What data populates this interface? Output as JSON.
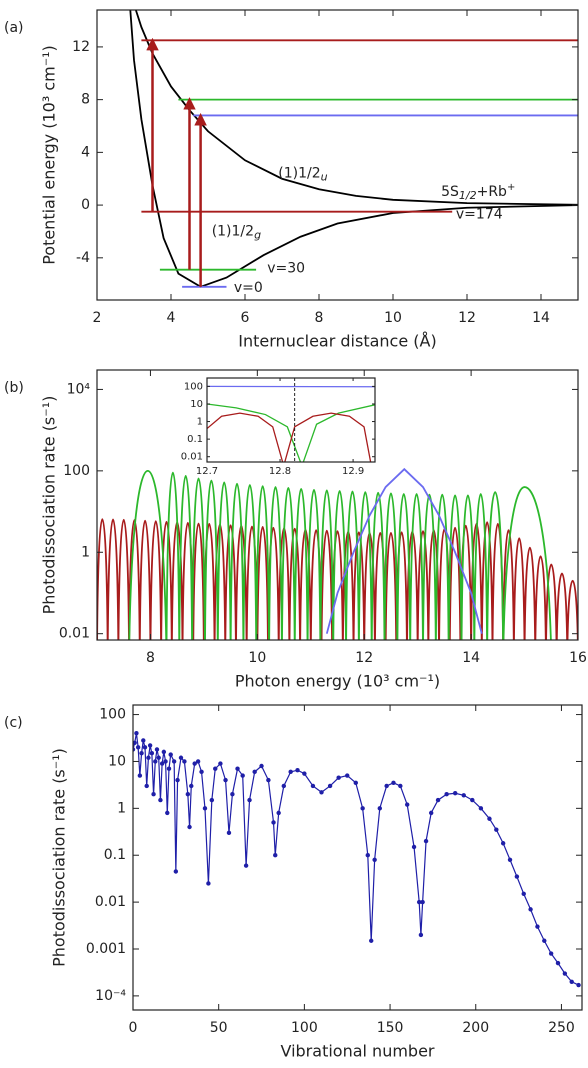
{
  "chart_data": [
    {
      "type": "line",
      "label": "(a)",
      "xlabel": "Internuclear distance (Å)",
      "ylabel": "Potential energy (10³ cm⁻¹)",
      "xlim": [
        2,
        15
      ],
      "ylim": [
        -7.2,
        14.8
      ],
      "xticks": [
        2,
        4,
        6,
        8,
        10,
        12,
        14
      ],
      "yticks": [
        -4,
        0,
        4,
        8,
        12
      ],
      "series": [
        {
          "color": "#000000",
          "x": [
            2.9,
            3,
            3.2,
            3.5,
            3.8,
            4.2,
            4.8,
            5.5,
            6.5,
            7.5,
            8.5,
            10,
            12,
            15
          ],
          "values": [
            14.8,
            11,
            6.5,
            1.5,
            -2.5,
            -5.2,
            -6.2,
            -5.5,
            -3.8,
            -2.4,
            -1.4,
            -0.6,
            -0.2,
            0
          ]
        },
        {
          "color": "#000000",
          "x": [
            3.05,
            3.2,
            3.5,
            4,
            4.5,
            5,
            6,
            7,
            8,
            9,
            10,
            12,
            15
          ],
          "values": [
            14.8,
            13.5,
            11.5,
            9,
            7.2,
            5.6,
            3.4,
            2,
            1.2,
            0.7,
            0.4,
            0.15,
            0.02
          ]
        },
        {
          "color": "#a81c1c",
          "x": [
            3.2,
            15
          ],
          "values": [
            12.5,
            12.5
          ]
        },
        {
          "color": "#2cb82c",
          "x": [
            4.2,
            15
          ],
          "values": [
            8,
            8
          ]
        },
        {
          "color": "#6b6bf0",
          "x": [
            4.6,
            15
          ],
          "values": [
            6.8,
            6.8
          ]
        },
        {
          "color": "#a81c1c",
          "x": [
            3.2,
            11.6
          ],
          "values": [
            -0.5,
            -0.5
          ]
        },
        {
          "color": "#2cb82c",
          "x": [
            3.7,
            6.3
          ],
          "values": [
            -4.9,
            -4.9
          ]
        },
        {
          "color": "#6b6bf0",
          "x": [
            4.3,
            5.5
          ],
          "values": [
            -6.2,
            -6.2
          ]
        },
        {
          "color": "#a81c1c",
          "arrow": true,
          "x": [
            3.5,
            3.5
          ],
          "values": [
            -0.5,
            12.5
          ]
        },
        {
          "color": "#a81c1c",
          "arrow": true,
          "x": [
            4.5,
            4.5
          ],
          "values": [
            -4.9,
            8
          ]
        },
        {
          "color": "#a81c1c",
          "arrow": true,
          "x": [
            4.8,
            4.8
          ],
          "values": [
            -6.2,
            6.8
          ]
        }
      ],
      "annotations": [
        {
          "text": "(1)1/2",
          "sub": "u"
        },
        {
          "text": "(1)1/2",
          "sub": "g"
        },
        {
          "text": "5S",
          "sub": "1/2",
          "tail": "+Rb",
          "sup": "+"
        },
        {
          "text": "v=174"
        },
        {
          "text": "v=30"
        },
        {
          "text": "v=0"
        }
      ]
    },
    {
      "type": "line",
      "label": "(b)",
      "log": true,
      "xlabel": "Photon energy (10³ cm⁻¹)",
      "ylabel": "Photodissociation rate (s⁻¹)",
      "xlim": [
        7,
        16
      ],
      "ylim": [
        0.007,
        30000
      ],
      "xticks": [
        8,
        10,
        12,
        14,
        16
      ],
      "yticks": [
        0.01,
        1,
        100,
        {
          "value": 10000,
          "label": "10⁴"
        }
      ],
      "series": [
        {
          "color": "#a81c1c",
          "arch": true,
          "x": [
            7,
            7.1,
            7.2,
            7.3,
            7.4,
            7.5,
            7.6,
            7.7,
            7.8,
            7.9,
            8,
            8.1,
            8.2,
            8.3,
            8.4,
            8.5,
            8.6,
            8.7,
            8.8,
            8.9,
            9,
            9.1,
            9.2,
            9.3,
            9.4,
            9.5,
            9.6,
            9.7,
            9.8,
            9.9,
            10,
            10.1,
            10.2,
            10.3,
            10.4,
            10.5,
            10.6,
            10.7,
            10.8,
            10.9,
            11,
            11.1,
            11.2,
            11.3,
            11.4,
            11.5,
            11.6,
            11.7,
            11.8,
            11.9,
            12,
            12.1,
            12.2,
            12.3,
            12.4,
            12.5,
            12.6,
            12.7,
            12.8,
            12.9,
            13,
            13.1,
            13.2,
            13.3,
            13.4,
            13.5,
            13.6,
            13.7,
            13.8,
            13.9,
            14,
            14.1,
            14.2,
            14.3,
            14.4,
            14.5,
            14.6,
            14.7,
            14.8,
            14.9,
            15,
            15.1,
            15.2,
            15.3,
            15.4,
            15.5,
            15.6,
            15.7,
            15.8,
            15.9,
            16
          ],
          "values": [
            0.003,
            6.5,
            0.003,
            6.4,
            0.003,
            6.3,
            0.003,
            6.2,
            0.003,
            6.0,
            0.003,
            5.8,
            0.003,
            5.6,
            0.003,
            5.5,
            0.003,
            5.3,
            0.003,
            5.1,
            0.003,
            5.0,
            0.003,
            4.8,
            0.003,
            4.6,
            0.003,
            4.5,
            0.003,
            4.3,
            0.003,
            4.2,
            0.003,
            4.0,
            0.003,
            3.9,
            0.003,
            3.8,
            0.003,
            3.6,
            0.003,
            3.5,
            0.003,
            3.4,
            0.003,
            3.3,
            0.003,
            3.2,
            0.003,
            3.1,
            0.003,
            3.0,
            0.003,
            3.0,
            0.003,
            3.0,
            0.003,
            3.1,
            0.003,
            3.2,
            0.003,
            3.3,
            0.003,
            3.5,
            0.003,
            3.7,
            0.003,
            4.0,
            0.003,
            4.5,
            0.003,
            5.0,
            0.003,
            5.5,
            0.003,
            5.0,
            0.003,
            3.5,
            0.003,
            2.2,
            0.003,
            1.3,
            0.003,
            0.8,
            0.003,
            0.5,
            0.003,
            0.3,
            0.003,
            0.2,
            0.003
          ]
        },
        {
          "color": "#2cb82c",
          "arch": true,
          "x": [
            7.6,
            7.95,
            8.3,
            8.42,
            8.54,
            8.66,
            8.78,
            8.9,
            9.02,
            9.14,
            9.26,
            9.38,
            9.5,
            9.62,
            9.74,
            9.86,
            9.98,
            10.1,
            10.22,
            10.34,
            10.46,
            10.58,
            10.7,
            10.82,
            10.94,
            11.06,
            11.18,
            11.3,
            11.42,
            11.54,
            11.66,
            11.78,
            11.9,
            12.02,
            12.14,
            12.26,
            12.38,
            12.5,
            12.62,
            12.74,
            12.86,
            12.98,
            13.1,
            13.22,
            13.34,
            13.46,
            13.58,
            13.7,
            13.82,
            13.94,
            14.06,
            14.18,
            14.3,
            14.45,
            14.6,
            15.0,
            15.5
          ],
          "values": [
            0.003,
            100,
            0.003,
            90,
            0.003,
            75,
            0.003,
            65,
            0.003,
            58,
            0.003,
            52,
            0.003,
            48,
            0.003,
            45,
            0.003,
            42,
            0.003,
            40,
            0.003,
            38,
            0.003,
            36,
            0.003,
            34,
            0.003,
            33,
            0.003,
            32,
            0.003,
            31,
            0.003,
            30,
            0.003,
            29,
            0.003,
            28,
            0.003,
            27,
            0.003,
            27,
            0.003,
            26,
            0.003,
            26,
            0.003,
            25,
            0.003,
            25,
            0.003,
            27,
            0.003,
            30,
            0.003,
            40,
            0.003
          ]
        },
        {
          "color": "#6b6bf0",
          "x": [
            11.3,
            11.5,
            11.8,
            12.1,
            12.4,
            12.75,
            13.1,
            13.4,
            13.7,
            14.0,
            14.2
          ],
          "values": [
            0.01,
            0.1,
            1,
            8,
            40,
            110,
            40,
            8,
            1,
            0.1,
            0.01
          ]
        }
      ]
    },
    {
      "type": "line",
      "log": true,
      "xlim": [
        12.7,
        12.93
      ],
      "ylim": [
        0.005,
        300
      ],
      "xticks": [
        12.7,
        12.8,
        12.9
      ],
      "yticks": [
        0.01,
        0.1,
        1,
        10,
        100
      ],
      "vline": 12.82,
      "series": [
        {
          "color": "#6b6bf0",
          "x": [
            12.7,
            12.93
          ],
          "values": [
            100,
            95
          ]
        },
        {
          "color": "#2cb82c",
          "x": [
            12.7,
            12.74,
            12.78,
            12.81,
            12.83,
            12.85,
            12.88,
            12.93
          ],
          "values": [
            10,
            6,
            2.5,
            0.5,
            0.003,
            0.7,
            3,
            9
          ]
        },
        {
          "color": "#a81c1c",
          "x": [
            12.7,
            12.72,
            12.745,
            12.77,
            12.79,
            12.805,
            12.82,
            12.845,
            12.87,
            12.895,
            12.915,
            12.925
          ],
          "values": [
            0.4,
            2,
            3,
            2,
            0.5,
            0.003,
            0.5,
            2,
            3,
            2,
            0.5,
            0.003
          ]
        }
      ]
    },
    {
      "type": "line",
      "label": "(c)",
      "log": true,
      "markers": true,
      "xlabel": "Vibrational number",
      "ylabel": "Photodissociation rate (s⁻¹)",
      "xlim": [
        0,
        262
      ],
      "ylim": [
        5e-05,
        160
      ],
      "xticks": [
        0,
        50,
        100,
        150,
        200,
        250
      ],
      "yticks": [
        {
          "value": 0.0001,
          "label": "10⁻⁴"
        },
        0.001,
        0.01,
        0.1,
        1,
        10,
        100
      ],
      "series": [
        {
          "color": "#1f1fa8",
          "x": [
            0,
            1,
            2,
            3,
            4,
            5,
            6,
            7,
            8,
            9,
            10,
            11,
            12,
            13,
            14,
            15,
            16,
            17,
            18,
            19,
            20,
            21,
            22,
            24,
            25,
            26,
            28,
            30,
            32,
            33,
            34,
            36,
            38,
            40,
            42,
            44,
            46,
            48,
            51,
            54,
            56,
            58,
            61,
            64,
            66,
            68,
            71,
            75,
            79,
            82,
            83,
            85,
            88,
            92,
            96,
            100,
            105,
            110,
            115,
            120,
            125,
            130,
            134,
            137,
            139,
            141,
            144,
            148,
            152,
            156,
            160,
            164,
            167,
            168,
            169,
            171,
            174,
            178,
            183,
            188,
            193,
            198,
            203,
            208,
            212,
            216,
            220,
            224,
            228,
            232,
            236,
            240,
            244,
            248,
            252,
            256,
            260
          ],
          "values": [
            18,
            25,
            40,
            20,
            5,
            15,
            28,
            20,
            3,
            12,
            22,
            15,
            2,
            10,
            18,
            12,
            1.5,
            9,
            16,
            10,
            0.8,
            7,
            14,
            10,
            0.045,
            4,
            12,
            10,
            2,
            0.4,
            3,
            9,
            10,
            6,
            1,
            0.025,
            1.5,
            7,
            9,
            4,
            0.3,
            2,
            7,
            5,
            0.06,
            1.5,
            6,
            8,
            4,
            0.5,
            0.1,
            0.8,
            3,
            6,
            6.5,
            5.5,
            3,
            2.2,
            3,
            4.5,
            5,
            3.5,
            1,
            0.1,
            0.0015,
            0.08,
            1,
            3,
            3.5,
            3,
            1.2,
            0.15,
            0.01,
            0.002,
            0.01,
            0.2,
            0.8,
            1.5,
            2,
            2.1,
            1.9,
            1.5,
            1,
            0.6,
            0.35,
            0.18,
            0.08,
            0.035,
            0.015,
            0.007,
            0.003,
            0.0015,
            0.0008,
            0.0005,
            0.0003,
            0.0002,
            0.00017
          ]
        }
      ]
    }
  ]
}
